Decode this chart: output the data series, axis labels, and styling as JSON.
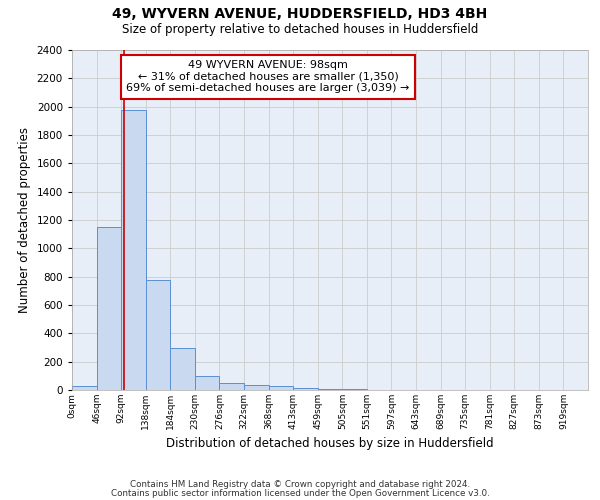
{
  "title1": "49, WYVERN AVENUE, HUDDERSFIELD, HD3 4BH",
  "title2": "Size of property relative to detached houses in Huddersfield",
  "xlabel": "Distribution of detached houses by size in Huddersfield",
  "ylabel": "Number of detached properties",
  "footnote1": "Contains HM Land Registry data © Crown copyright and database right 2024.",
  "footnote2": "Contains public sector information licensed under the Open Government Licence v3.0.",
  "bin_labels": [
    "0sqm",
    "46sqm",
    "92sqm",
    "138sqm",
    "184sqm",
    "230sqm",
    "276sqm",
    "322sqm",
    "368sqm",
    "413sqm",
    "459sqm",
    "505sqm",
    "551sqm",
    "597sqm",
    "643sqm",
    "689sqm",
    "735sqm",
    "781sqm",
    "827sqm",
    "873sqm",
    "919sqm"
  ],
  "bar_heights": [
    30,
    1150,
    1975,
    775,
    295,
    100,
    50,
    35,
    25,
    15,
    10,
    5,
    3,
    2,
    1,
    1,
    1,
    1,
    0,
    0,
    0
  ],
  "bar_color": "#c9d9f0",
  "bar_edge_color": "#5b8fd4",
  "bar_width": 1.0,
  "grid_color": "#cccccc",
  "background_color": "#e8eef8",
  "red_line_color": "#cc0000",
  "annotation_text": "49 WYVERN AVENUE: 98sqm\n← 31% of detached houses are smaller (1,350)\n69% of semi-detached houses are larger (3,039) →",
  "annotation_box_color": "#ffffff",
  "annotation_box_edge": "#cc0000",
  "ylim": [
    0,
    2400
  ],
  "yticks": [
    0,
    200,
    400,
    600,
    800,
    1000,
    1200,
    1400,
    1600,
    1800,
    2000,
    2200,
    2400
  ],
  "red_line_x": 2.13
}
